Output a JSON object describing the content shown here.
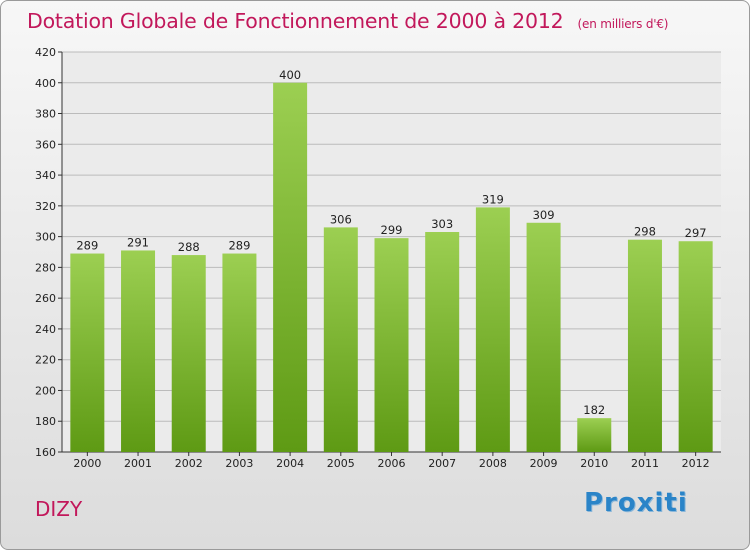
{
  "title": "Dotation Globale de Fonctionnement de 2000 à 2012",
  "subtitle": "(en milliers d'€)",
  "commune": "DIZY",
  "brand": "Proxiti",
  "colors": {
    "title": "#c2185b",
    "bar_top": "#9ccf52",
    "bar_bottom": "#5e9a14",
    "axis": "#333333",
    "grid": "#bbbbbb"
  },
  "chart_data": {
    "type": "bar",
    "title": "Dotation Globale de Fonctionnement de 2000 à 2012",
    "subtitle": "(en milliers d'€)",
    "categories": [
      "2000",
      "2001",
      "2002",
      "2003",
      "2004",
      "2005",
      "2006",
      "2007",
      "2008",
      "2009",
      "2010",
      "2011",
      "2012"
    ],
    "values": [
      289,
      291,
      288,
      289,
      400,
      306,
      299,
      303,
      319,
      309,
      182,
      298,
      297
    ],
    "ylim": [
      160,
      420
    ],
    "yticks": [
      160,
      180,
      200,
      220,
      240,
      260,
      280,
      300,
      320,
      340,
      360,
      380,
      400,
      420
    ],
    "grid": true,
    "legend": "none"
  }
}
